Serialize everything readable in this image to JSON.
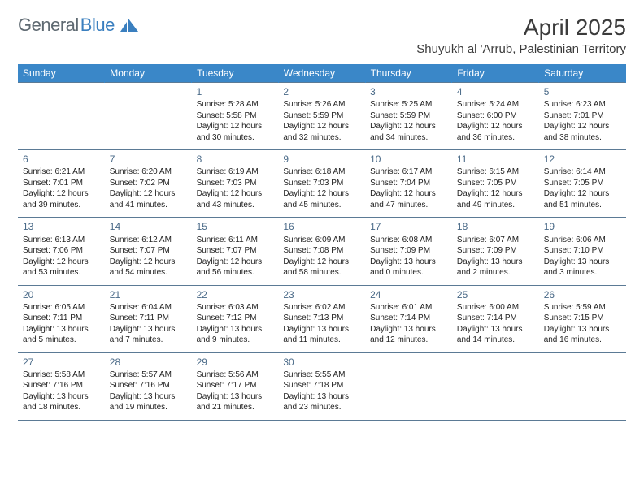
{
  "logo": {
    "text1": "General",
    "text2": "Blue"
  },
  "title": "April 2025",
  "location": "Shuyukh al 'Arrub, Palestinian Territory",
  "colors": {
    "header_bg": "#3a87c8",
    "header_fg": "#ffffff",
    "border": "#5b7a95",
    "daynum": "#4a6a88",
    "logo_gray": "#5f6a72",
    "logo_blue": "#3a7fbf",
    "text": "#222222",
    "title_color": "#3b3b3b"
  },
  "weekdays": [
    "Sunday",
    "Monday",
    "Tuesday",
    "Wednesday",
    "Thursday",
    "Friday",
    "Saturday"
  ],
  "weeks": [
    [
      null,
      null,
      {
        "day": "1",
        "sunrise": "5:28 AM",
        "sunset": "5:58 PM",
        "daylight": "12 hours and 30 minutes."
      },
      {
        "day": "2",
        "sunrise": "5:26 AM",
        "sunset": "5:59 PM",
        "daylight": "12 hours and 32 minutes."
      },
      {
        "day": "3",
        "sunrise": "5:25 AM",
        "sunset": "5:59 PM",
        "daylight": "12 hours and 34 minutes."
      },
      {
        "day": "4",
        "sunrise": "5:24 AM",
        "sunset": "6:00 PM",
        "daylight": "12 hours and 36 minutes."
      },
      {
        "day": "5",
        "sunrise": "6:23 AM",
        "sunset": "7:01 PM",
        "daylight": "12 hours and 38 minutes."
      }
    ],
    [
      {
        "day": "6",
        "sunrise": "6:21 AM",
        "sunset": "7:01 PM",
        "daylight": "12 hours and 39 minutes."
      },
      {
        "day": "7",
        "sunrise": "6:20 AM",
        "sunset": "7:02 PM",
        "daylight": "12 hours and 41 minutes."
      },
      {
        "day": "8",
        "sunrise": "6:19 AM",
        "sunset": "7:03 PM",
        "daylight": "12 hours and 43 minutes."
      },
      {
        "day": "9",
        "sunrise": "6:18 AM",
        "sunset": "7:03 PM",
        "daylight": "12 hours and 45 minutes."
      },
      {
        "day": "10",
        "sunrise": "6:17 AM",
        "sunset": "7:04 PM",
        "daylight": "12 hours and 47 minutes."
      },
      {
        "day": "11",
        "sunrise": "6:15 AM",
        "sunset": "7:05 PM",
        "daylight": "12 hours and 49 minutes."
      },
      {
        "day": "12",
        "sunrise": "6:14 AM",
        "sunset": "7:05 PM",
        "daylight": "12 hours and 51 minutes."
      }
    ],
    [
      {
        "day": "13",
        "sunrise": "6:13 AM",
        "sunset": "7:06 PM",
        "daylight": "12 hours and 53 minutes."
      },
      {
        "day": "14",
        "sunrise": "6:12 AM",
        "sunset": "7:07 PM",
        "daylight": "12 hours and 54 minutes."
      },
      {
        "day": "15",
        "sunrise": "6:11 AM",
        "sunset": "7:07 PM",
        "daylight": "12 hours and 56 minutes."
      },
      {
        "day": "16",
        "sunrise": "6:09 AM",
        "sunset": "7:08 PM",
        "daylight": "12 hours and 58 minutes."
      },
      {
        "day": "17",
        "sunrise": "6:08 AM",
        "sunset": "7:09 PM",
        "daylight": "13 hours and 0 minutes."
      },
      {
        "day": "18",
        "sunrise": "6:07 AM",
        "sunset": "7:09 PM",
        "daylight": "13 hours and 2 minutes."
      },
      {
        "day": "19",
        "sunrise": "6:06 AM",
        "sunset": "7:10 PM",
        "daylight": "13 hours and 3 minutes."
      }
    ],
    [
      {
        "day": "20",
        "sunrise": "6:05 AM",
        "sunset": "7:11 PM",
        "daylight": "13 hours and 5 minutes."
      },
      {
        "day": "21",
        "sunrise": "6:04 AM",
        "sunset": "7:11 PM",
        "daylight": "13 hours and 7 minutes."
      },
      {
        "day": "22",
        "sunrise": "6:03 AM",
        "sunset": "7:12 PM",
        "daylight": "13 hours and 9 minutes."
      },
      {
        "day": "23",
        "sunrise": "6:02 AM",
        "sunset": "7:13 PM",
        "daylight": "13 hours and 11 minutes."
      },
      {
        "day": "24",
        "sunrise": "6:01 AM",
        "sunset": "7:14 PM",
        "daylight": "13 hours and 12 minutes."
      },
      {
        "day": "25",
        "sunrise": "6:00 AM",
        "sunset": "7:14 PM",
        "daylight": "13 hours and 14 minutes."
      },
      {
        "day": "26",
        "sunrise": "5:59 AM",
        "sunset": "7:15 PM",
        "daylight": "13 hours and 16 minutes."
      }
    ],
    [
      {
        "day": "27",
        "sunrise": "5:58 AM",
        "sunset": "7:16 PM",
        "daylight": "13 hours and 18 minutes."
      },
      {
        "day": "28",
        "sunrise": "5:57 AM",
        "sunset": "7:16 PM",
        "daylight": "13 hours and 19 minutes."
      },
      {
        "day": "29",
        "sunrise": "5:56 AM",
        "sunset": "7:17 PM",
        "daylight": "13 hours and 21 minutes."
      },
      {
        "day": "30",
        "sunrise": "5:55 AM",
        "sunset": "7:18 PM",
        "daylight": "13 hours and 23 minutes."
      },
      null,
      null,
      null
    ]
  ],
  "labels": {
    "sunrise": "Sunrise:",
    "sunset": "Sunset:",
    "daylight": "Daylight:"
  }
}
